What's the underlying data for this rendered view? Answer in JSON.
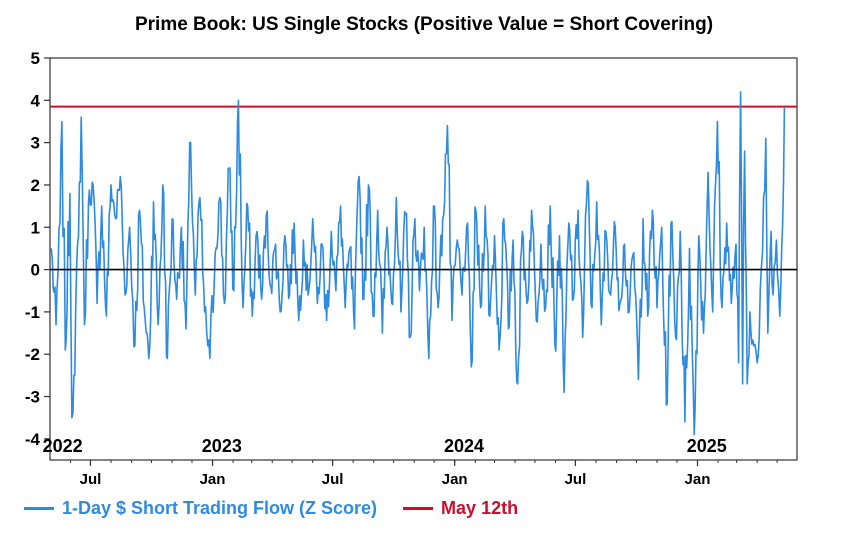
{
  "chart_data": {
    "type": "line",
    "title": "Prime Book: US Single Stocks (Positive Value = Short Covering)",
    "xlabel": "",
    "ylabel": "",
    "ylim": [
      -4.5,
      5
    ],
    "x_range": [
      "2022-05-01",
      "2025-05-31"
    ],
    "y_ticks": [
      "5",
      "4",
      "3",
      "2",
      "1",
      "0",
      "-1",
      "-2",
      "-3",
      "-4"
    ],
    "x_ticks": [
      {
        "label": "Jul",
        "date": "2022-07-01"
      },
      {
        "label": "Jan",
        "date": "2023-01-01"
      },
      {
        "label": "Jul",
        "date": "2023-07-01"
      },
      {
        "label": "Jan",
        "date": "2024-01-01"
      },
      {
        "label": "Jul",
        "date": "2024-07-01"
      },
      {
        "label": "Jan",
        "date": "2025-01-01"
      }
    ],
    "year_labels": [
      {
        "label": "2022",
        "date": "2022-05-20"
      },
      {
        "label": "2023",
        "date": "2023-01-15"
      },
      {
        "label": "2024",
        "date": "2024-01-15"
      },
      {
        "label": "2025",
        "date": "2025-01-15"
      }
    ],
    "series": [
      {
        "name": "1-Day $ Short Trading Flow (Z Score)",
        "color": "#2f8be0",
        "points": [
          [
            "2022-05-03",
            0.5
          ],
          [
            "2022-05-10",
            -1.3
          ],
          [
            "2022-05-16",
            1.1
          ],
          [
            "2022-05-19",
            3.5
          ],
          [
            "2022-05-24",
            -1.9
          ],
          [
            "2022-05-31",
            1.8
          ],
          [
            "2022-06-03",
            -3.5
          ],
          [
            "2022-06-06",
            -2.5
          ],
          [
            "2022-06-13",
            0.8
          ],
          [
            "2022-06-17",
            3.6
          ],
          [
            "2022-06-22",
            -1.3
          ],
          [
            "2022-06-28",
            1.6
          ],
          [
            "2022-07-05",
            2.0
          ],
          [
            "2022-07-11",
            -0.8
          ],
          [
            "2022-07-18",
            1.5
          ],
          [
            "2022-07-25",
            -1.1
          ],
          [
            "2022-08-01",
            2.0
          ],
          [
            "2022-08-08",
            1.2
          ],
          [
            "2022-08-15",
            2.2
          ],
          [
            "2022-08-22",
            -0.6
          ],
          [
            "2022-08-29",
            1.0
          ],
          [
            "2022-09-06",
            -1.8
          ],
          [
            "2022-09-13",
            1.4
          ],
          [
            "2022-09-20",
            -0.9
          ],
          [
            "2022-09-27",
            -2.1
          ],
          [
            "2022-10-04",
            1.6
          ],
          [
            "2022-10-11",
            -1.3
          ],
          [
            "2022-10-18",
            2.0
          ],
          [
            "2022-10-25",
            -2.1
          ],
          [
            "2022-11-01",
            1.2
          ],
          [
            "2022-11-08",
            -0.7
          ],
          [
            "2022-11-15",
            1.0
          ],
          [
            "2022-11-22",
            -1.4
          ],
          [
            "2022-11-29",
            3.0
          ],
          [
            "2022-12-06",
            -0.6
          ],
          [
            "2022-12-13",
            1.7
          ],
          [
            "2022-12-20",
            -1.0
          ],
          [
            "2022-12-28",
            -2.1
          ],
          [
            "2023-01-05",
            0.4
          ],
          [
            "2023-01-12",
            1.7
          ],
          [
            "2023-01-19",
            -0.8
          ],
          [
            "2023-01-26",
            2.4
          ],
          [
            "2023-02-02",
            -0.5
          ],
          [
            "2023-02-09",
            4.0
          ],
          [
            "2023-02-16",
            -0.9
          ],
          [
            "2023-02-23",
            1.5
          ],
          [
            "2023-03-02",
            -1.1
          ],
          [
            "2023-03-09",
            0.9
          ],
          [
            "2023-03-16",
            -0.7
          ],
          [
            "2023-03-23",
            1.3
          ],
          [
            "2023-03-30",
            -0.4
          ],
          [
            "2023-04-06",
            0.6
          ],
          [
            "2023-04-13",
            -1.0
          ],
          [
            "2023-04-20",
            0.8
          ],
          [
            "2023-04-27",
            -0.6
          ],
          [
            "2023-05-04",
            1.1
          ],
          [
            "2023-05-11",
            -1.2
          ],
          [
            "2023-05-18",
            0.7
          ],
          [
            "2023-05-25",
            -0.6
          ],
          [
            "2023-06-01",
            1.2
          ],
          [
            "2023-06-08",
            -0.8
          ],
          [
            "2023-06-15",
            0.6
          ],
          [
            "2023-06-22",
            -1.2
          ],
          [
            "2023-06-29",
            0.9
          ],
          [
            "2023-07-06",
            -0.5
          ],
          [
            "2023-07-13",
            1.5
          ],
          [
            "2023-07-20",
            -0.9
          ],
          [
            "2023-07-27",
            0.5
          ],
          [
            "2023-08-03",
            -1.4
          ],
          [
            "2023-08-10",
            2.2
          ],
          [
            "2023-08-17",
            -0.7
          ],
          [
            "2023-08-24",
            2.0
          ],
          [
            "2023-08-31",
            -1.1
          ],
          [
            "2023-09-07",
            1.4
          ],
          [
            "2023-09-14",
            -1.5
          ],
          [
            "2023-09-21",
            1.0
          ],
          [
            "2023-09-28",
            -0.8
          ],
          [
            "2023-10-05",
            1.7
          ],
          [
            "2023-10-12",
            -1.0
          ],
          [
            "2023-10-19",
            1.3
          ],
          [
            "2023-10-26",
            -1.6
          ],
          [
            "2023-11-02",
            1.2
          ],
          [
            "2023-11-09",
            -0.5
          ],
          [
            "2023-11-16",
            1.0
          ],
          [
            "2023-11-23",
            -2.1
          ],
          [
            "2023-11-30",
            1.5
          ],
          [
            "2023-12-07",
            -0.9
          ],
          [
            "2023-12-14",
            1.2
          ],
          [
            "2023-12-21",
            3.4
          ],
          [
            "2023-12-28",
            -1.2
          ],
          [
            "2024-01-05",
            0.7
          ],
          [
            "2024-01-12",
            -0.6
          ],
          [
            "2024-01-19",
            1.0
          ],
          [
            "2024-01-26",
            -2.3
          ],
          [
            "2024-02-02",
            1.4
          ],
          [
            "2024-02-09",
            -0.9
          ],
          [
            "2024-02-16",
            1.5
          ],
          [
            "2024-02-23",
            -1.1
          ],
          [
            "2024-03-01",
            0.8
          ],
          [
            "2024-03-08",
            -1.9
          ],
          [
            "2024-03-15",
            1.2
          ],
          [
            "2024-03-22",
            -1.4
          ],
          [
            "2024-03-29",
            0.7
          ],
          [
            "2024-04-05",
            -2.7
          ],
          [
            "2024-04-12",
            0.9
          ],
          [
            "2024-04-19",
            -0.8
          ],
          [
            "2024-04-26",
            1.4
          ],
          [
            "2024-05-03",
            -1.2
          ],
          [
            "2024-05-10",
            0.6
          ],
          [
            "2024-05-17",
            -0.9
          ],
          [
            "2024-05-24",
            1.5
          ],
          [
            "2024-05-31",
            -1.8
          ],
          [
            "2024-06-07",
            0.8
          ],
          [
            "2024-06-14",
            -2.9
          ],
          [
            "2024-06-21",
            1.1
          ],
          [
            "2024-06-28",
            -0.7
          ],
          [
            "2024-07-05",
            1.4
          ],
          [
            "2024-07-12",
            -1.6
          ],
          [
            "2024-07-19",
            2.1
          ],
          [
            "2024-07-26",
            -0.9
          ],
          [
            "2024-08-02",
            1.6
          ],
          [
            "2024-08-09",
            -1.3
          ],
          [
            "2024-08-16",
            0.9
          ],
          [
            "2024-08-23",
            -0.6
          ],
          [
            "2024-08-30",
            1.0
          ],
          [
            "2024-09-06",
            -0.8
          ],
          [
            "2024-09-13",
            0.6
          ],
          [
            "2024-09-20",
            -1.0
          ],
          [
            "2024-09-27",
            0.4
          ],
          [
            "2024-10-04",
            -2.6
          ],
          [
            "2024-10-11",
            1.2
          ],
          [
            "2024-10-18",
            -1.1
          ],
          [
            "2024-10-25",
            1.4
          ],
          [
            "2024-11-01",
            -0.9
          ],
          [
            "2024-11-08",
            1.0
          ],
          [
            "2024-11-15",
            -3.2
          ],
          [
            "2024-11-22",
            1.1
          ],
          [
            "2024-11-29",
            -1.6
          ],
          [
            "2024-12-06",
            0.9
          ],
          [
            "2024-12-13",
            -3.6
          ],
          [
            "2024-12-20",
            0.5
          ],
          [
            "2024-12-27",
            -3.9
          ],
          [
            "2025-01-03",
            0.8
          ],
          [
            "2025-01-10",
            -1.5
          ],
          [
            "2025-01-17",
            2.3
          ],
          [
            "2025-01-24",
            -1.0
          ],
          [
            "2025-01-31",
            3.5
          ],
          [
            "2025-02-07",
            -0.9
          ],
          [
            "2025-02-14",
            1.1
          ],
          [
            "2025-02-21",
            -0.8
          ],
          [
            "2025-02-28",
            0.6
          ],
          [
            "2025-03-04",
            -2.2
          ],
          [
            "2025-03-07",
            4.2
          ],
          [
            "2025-03-10",
            -2.7
          ],
          [
            "2025-03-13",
            2.8
          ],
          [
            "2025-03-17",
            -2.7
          ],
          [
            "2025-03-21",
            -1.0
          ],
          [
            "2025-03-27",
            -1.8
          ],
          [
            "2025-04-01",
            -2.2
          ],
          [
            "2025-04-04",
            -1.6
          ],
          [
            "2025-04-09",
            0.4
          ],
          [
            "2025-04-14",
            3.1
          ],
          [
            "2025-04-17",
            -1.5
          ],
          [
            "2025-04-22",
            0.9
          ],
          [
            "2025-04-25",
            -0.6
          ],
          [
            "2025-04-30",
            0.7
          ],
          [
            "2025-05-05",
            -1.1
          ],
          [
            "2025-05-08",
            0.5
          ],
          [
            "2025-05-12",
            3.85
          ]
        ]
      },
      {
        "name": "May 12th",
        "color": "#c8102e",
        "type": "hline",
        "value": 3.85
      }
    ],
    "zero_line": true,
    "grid": false,
    "legend_position": "bottom-left"
  }
}
